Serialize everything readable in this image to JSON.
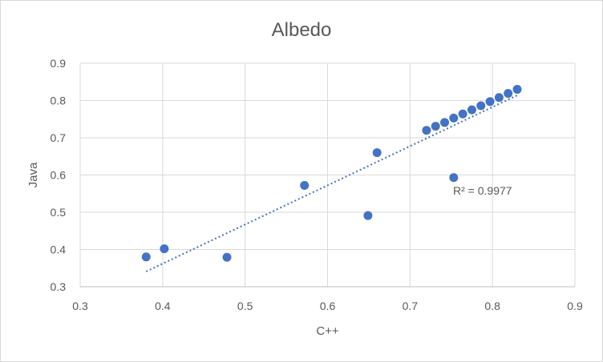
{
  "chart_data": {
    "type": "scatter",
    "title": "Albedo",
    "xlabel": "C++",
    "ylabel": "Java",
    "xlim": [
      0.3,
      0.9
    ],
    "ylim": [
      0.3,
      0.9
    ],
    "xticks": [
      "0.3",
      "0.4",
      "0.5",
      "0.6",
      "0.7",
      "0.8",
      "0.9"
    ],
    "yticks": [
      "0.3",
      "0.4",
      "0.5",
      "0.6",
      "0.7",
      "0.8",
      "0.9"
    ],
    "grid": true,
    "legend": "none",
    "marker_color": "#4472c4",
    "trendline": {
      "type": "linear",
      "style": "dotted",
      "color": "#4472c4",
      "x_range": [
        0.38,
        0.83
      ],
      "label": "R² = 0.9977"
    },
    "series": [
      {
        "points": [
          [
            0.38,
            0.38
          ],
          [
            0.402,
            0.402
          ],
          [
            0.478,
            0.379
          ],
          [
            0.572,
            0.572
          ],
          [
            0.649,
            0.491
          ],
          [
            0.66,
            0.66
          ],
          [
            0.72,
            0.72
          ],
          [
            0.731,
            0.731
          ],
          [
            0.742,
            0.741
          ],
          [
            0.753,
            0.593
          ],
          [
            0.753,
            0.753
          ],
          [
            0.764,
            0.764
          ],
          [
            0.775,
            0.775
          ],
          [
            0.786,
            0.786
          ],
          [
            0.797,
            0.797
          ],
          [
            0.808,
            0.808
          ],
          [
            0.819,
            0.819
          ],
          [
            0.83,
            0.83
          ]
        ]
      }
    ]
  }
}
